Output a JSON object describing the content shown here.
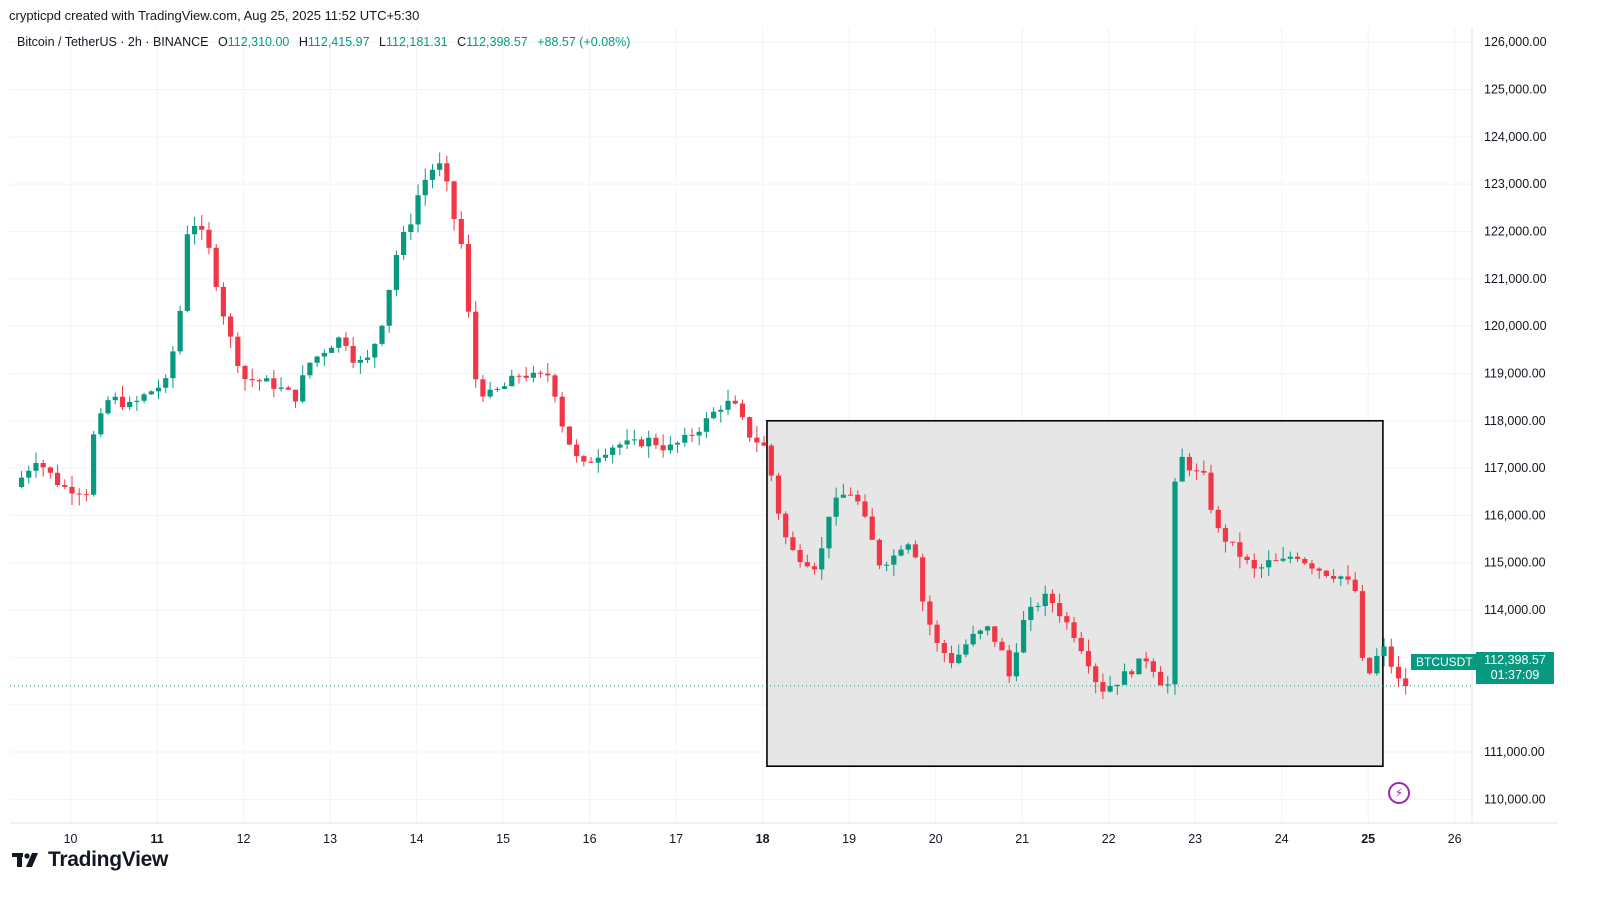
{
  "attribution": "crypticpd created with TradingView.com, Aug 25, 2025 11:52 UTC+5:30",
  "legend": {
    "symbol": "Bitcoin / TetherUS · 2h · BINANCE",
    "open_label": "O",
    "open": "112,310.00",
    "high_label": "H",
    "high": "112,415.97",
    "low_label": "L",
    "low": "112,181.31",
    "close_label": "C",
    "close": "112,398.57",
    "change": "+88.57 (+0.08%)"
  },
  "price_tag": {
    "symbol": "BTCUSDT",
    "price": "112,398.57",
    "countdown": "01:37:09"
  },
  "brand": {
    "name": "TradingView"
  },
  "icons": {
    "alert": "lightning-icon",
    "logo": "tradingview-logo-icon"
  },
  "colors": {
    "up": "#089981",
    "down": "#f23645",
    "range_box": "#e3e3e3",
    "lightning": "#9c27b0"
  },
  "chart_data": {
    "type": "candlestick",
    "y_axis": {
      "range": [
        109500,
        126300
      ],
      "ticks": [
        110000,
        111000,
        112000,
        113000,
        114000,
        115000,
        116000,
        117000,
        118000,
        119000,
        120000,
        121000,
        122000,
        123000,
        124000,
        125000,
        126000
      ],
      "tick_labels": [
        "110,000.00",
        "111,000.00",
        "",
        "113,000.00",
        "114,000.00",
        "115,000.00",
        "116,000.00",
        "117,000.00",
        "118,000.00",
        "119,000.00",
        "120,000.00",
        "121,000.00",
        "122,000.00",
        "123,000.00",
        "124,000.00",
        "125,000.00",
        "126,000.00"
      ],
      "position": "right"
    },
    "x_axis": {
      "range": [
        9.3,
        26.2
      ],
      "ticks": [
        10,
        11,
        12,
        13,
        14,
        15,
        16,
        17,
        18,
        19,
        20,
        21,
        22,
        23,
        24,
        25,
        26
      ],
      "tick_labels": [
        "10",
        "11",
        "12",
        "13",
        "14",
        "15",
        "16",
        "17",
        "18",
        "19",
        "20",
        "21",
        "22",
        "23",
        "24",
        "25",
        "26"
      ],
      "bold_ticks": [
        "11",
        "18",
        "25"
      ],
      "unit": "day of month (Aug 2025)"
    },
    "grid": true,
    "last_price": 112398.57,
    "range_box": {
      "x_start": 18.05,
      "x_end": 25.17,
      "y_low": 110700,
      "y_high": 118000
    },
    "close_path": [
      [
        9.35,
        116600
      ],
      [
        9.6,
        117200
      ],
      [
        9.9,
        116600
      ],
      [
        10.2,
        116500
      ],
      [
        10.25,
        117600
      ],
      [
        10.45,
        118500
      ],
      [
        10.7,
        118300
      ],
      [
        10.9,
        118600
      ],
      [
        11.1,
        118800
      ],
      [
        11.25,
        120000
      ],
      [
        11.35,
        122000
      ],
      [
        11.45,
        122200
      ],
      [
        11.6,
        121600
      ],
      [
        11.8,
        120000
      ],
      [
        12.0,
        118900
      ],
      [
        12.3,
        118800
      ],
      [
        12.6,
        118500
      ],
      [
        12.75,
        119200
      ],
      [
        13.0,
        119600
      ],
      [
        13.15,
        119800
      ],
      [
        13.3,
        119200
      ],
      [
        13.45,
        119300
      ],
      [
        13.6,
        120100
      ],
      [
        13.8,
        121800
      ],
      [
        13.9,
        122000
      ],
      [
        14.0,
        122700
      ],
      [
        14.15,
        123300
      ],
      [
        14.3,
        123400
      ],
      [
        14.4,
        122500
      ],
      [
        14.55,
        121500
      ],
      [
        14.65,
        119000
      ],
      [
        14.8,
        118500
      ],
      [
        15.0,
        118700
      ],
      [
        15.2,
        119000
      ],
      [
        15.4,
        118900
      ],
      [
        15.55,
        119000
      ],
      [
        15.7,
        117800
      ],
      [
        15.9,
        117000
      ],
      [
        16.1,
        117300
      ],
      [
        16.3,
        117500
      ],
      [
        16.5,
        117500
      ],
      [
        16.7,
        117600
      ],
      [
        16.9,
        117400
      ],
      [
        17.1,
        117600
      ],
      [
        17.3,
        117900
      ],
      [
        17.5,
        118300
      ],
      [
        17.65,
        118400
      ],
      [
        17.85,
        117700
      ],
      [
        18.05,
        117400
      ],
      [
        18.15,
        116300
      ],
      [
        18.3,
        115300
      ],
      [
        18.45,
        115100
      ],
      [
        18.65,
        114900
      ],
      [
        18.75,
        116000
      ],
      [
        18.9,
        116400
      ],
      [
        19.05,
        116500
      ],
      [
        19.2,
        115800
      ],
      [
        19.35,
        115000
      ],
      [
        19.5,
        115100
      ],
      [
        19.65,
        115500
      ],
      [
        19.75,
        115400
      ],
      [
        19.85,
        114200
      ],
      [
        20.0,
        113300
      ],
      [
        20.2,
        112900
      ],
      [
        20.4,
        113400
      ],
      [
        20.6,
        113600
      ],
      [
        20.75,
        113200
      ],
      [
        20.85,
        112600
      ],
      [
        21.0,
        113700
      ],
      [
        21.15,
        114100
      ],
      [
        21.3,
        114300
      ],
      [
        21.45,
        113900
      ],
      [
        21.6,
        113500
      ],
      [
        21.75,
        113000
      ],
      [
        21.9,
        112300
      ],
      [
        22.1,
        112500
      ],
      [
        22.3,
        112800
      ],
      [
        22.45,
        113000
      ],
      [
        22.6,
        112500
      ],
      [
        22.7,
        112400
      ],
      [
        22.75,
        116500
      ],
      [
        22.85,
        117200
      ],
      [
        23.0,
        116900
      ],
      [
        23.1,
        116800
      ],
      [
        23.25,
        115700
      ],
      [
        23.4,
        115400
      ],
      [
        23.55,
        115100
      ],
      [
        23.7,
        114800
      ],
      [
        23.85,
        115000
      ],
      [
        24.0,
        115000
      ],
      [
        24.15,
        115200
      ],
      [
        24.3,
        115000
      ],
      [
        24.5,
        114800
      ],
      [
        24.7,
        114700
      ],
      [
        24.85,
        114400
      ],
      [
        24.95,
        112600
      ],
      [
        25.05,
        112700
      ],
      [
        25.15,
        113300
      ],
      [
        25.25,
        112900
      ],
      [
        25.35,
        112500
      ],
      [
        25.45,
        112400
      ]
    ]
  }
}
